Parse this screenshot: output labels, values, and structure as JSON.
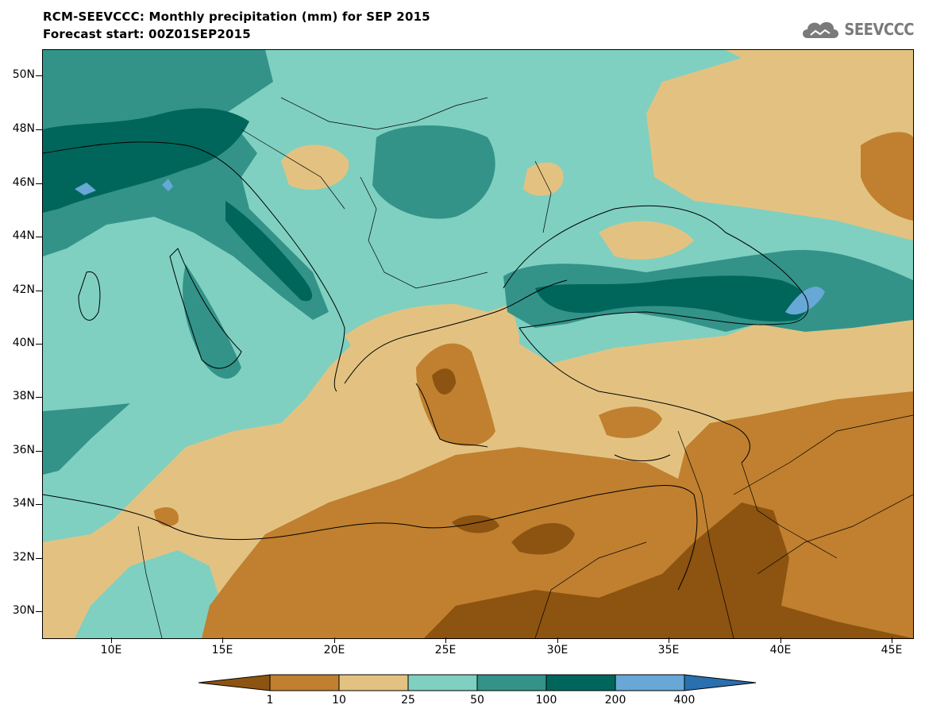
{
  "header": {
    "title": "RCM-SEEVCCC: Monthly precipitation (mm) for SEP 2015",
    "subtitle": "Forecast start: 00Z01SEP2015"
  },
  "logo": {
    "text": "SEEVCCC",
    "icon": "cloud-icon"
  },
  "map": {
    "lat_labels": [
      "50N",
      "48N",
      "46N",
      "44N",
      "42N",
      "40N",
      "38N",
      "36N",
      "34N",
      "32N",
      "30N"
    ],
    "lon_labels": [
      "10E",
      "15E",
      "20E",
      "25E",
      "30E",
      "35E",
      "40E",
      "45E"
    ]
  },
  "colorbar": {
    "labels": [
      "1",
      "10",
      "25",
      "50",
      "100",
      "200",
      "400"
    ],
    "colors": [
      "#8d5310",
      "#c0802f",
      "#e3c281",
      "#7fd0c1",
      "#339389",
      "#00665c",
      "#67a8d6",
      "#2a6fae"
    ]
  },
  "colors": {
    "land_outline": "#000000"
  }
}
